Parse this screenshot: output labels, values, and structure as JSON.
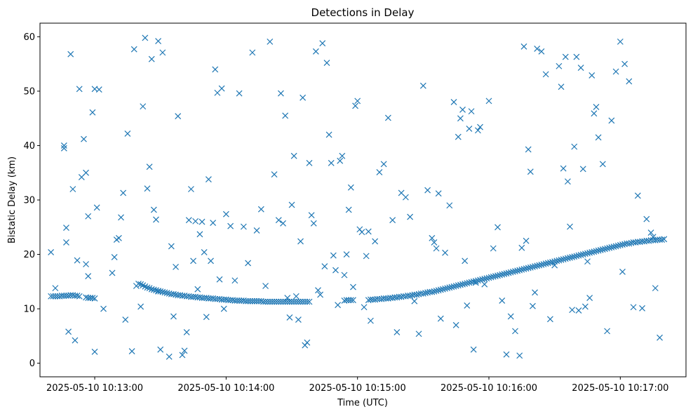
{
  "chart_data": {
    "type": "scatter",
    "title": "Detections in Delay",
    "xlabel": "Time (UTC)",
    "ylabel": "Bistatic Delay (km)",
    "x_ticks": [
      "2025-05-10 10:13:00",
      "2025-05-10 10:14:00",
      "2025-05-10 10:15:00",
      "2025-05-10 10:16:00",
      "2025-05-10 10:17:00"
    ],
    "y_ticks": [
      0,
      10,
      20,
      30,
      40,
      50,
      60
    ],
    "xlim": [
      "2025-05-10 10:12:35",
      "2025-05-10 10:17:30"
    ],
    "ylim": [
      -2.5,
      62.5
    ],
    "marker": "x",
    "color": "#1f77b4",
    "series": [
      {
        "x": [
          "10:12:40",
          "10:12:41",
          "10:12:42",
          "10:12:43",
          "10:12:44",
          "10:12:45",
          "10:12:46",
          "10:12:47",
          "10:12:48",
          "10:12:49",
          "10:12:50",
          "10:12:51",
          "10:12:52",
          "10:12:53",
          "10:12:56",
          "10:12:57",
          "10:12:58",
          "10:12:59",
          "10:13:00",
          "10:13:20",
          "10:13:21",
          "10:13:22",
          "10:13:23",
          "10:13:24",
          "10:13:25",
          "10:13:26",
          "10:13:27",
          "10:13:28",
          "10:13:29",
          "10:13:30",
          "10:13:31",
          "10:13:32",
          "10:13:33",
          "10:13:34",
          "10:13:35",
          "10:13:36",
          "10:13:37",
          "10:13:38",
          "10:13:39",
          "10:13:40",
          "10:13:41",
          "10:13:42",
          "10:13:43",
          "10:13:44",
          "10:13:45",
          "10:13:46",
          "10:13:47",
          "10:13:48",
          "10:13:49",
          "10:13:50",
          "10:13:51",
          "10:13:52",
          "10:13:53",
          "10:13:54",
          "10:13:55",
          "10:13:56",
          "10:13:57",
          "10:13:58",
          "10:13:59",
          "10:14:00",
          "10:14:01",
          "10:14:02",
          "10:14:03",
          "10:14:04",
          "10:14:05",
          "10:14:06",
          "10:14:07",
          "10:14:08",
          "10:14:09",
          "10:14:10",
          "10:14:11",
          "10:14:12",
          "10:14:13",
          "10:14:14",
          "10:14:15",
          "10:14:16",
          "10:14:17",
          "10:14:18",
          "10:14:19",
          "10:14:20",
          "10:14:21",
          "10:14:22",
          "10:14:23",
          "10:14:24",
          "10:14:25",
          "10:14:26",
          "10:14:27",
          "10:14:28",
          "10:14:29",
          "10:14:30",
          "10:14:31",
          "10:14:32",
          "10:14:33",
          "10:14:34",
          "10:14:35",
          "10:14:36",
          "10:14:37",
          "10:14:38",
          "10:14:54",
          "10:14:55",
          "10:14:56",
          "10:14:57",
          "10:14:58",
          "10:15:05",
          "10:15:06",
          "10:15:07",
          "10:15:08",
          "10:15:09",
          "10:15:10",
          "10:15:11",
          "10:15:12",
          "10:15:13",
          "10:15:14",
          "10:15:15",
          "10:15:16",
          "10:15:17",
          "10:15:18",
          "10:15:19",
          "10:15:20",
          "10:15:21",
          "10:15:22",
          "10:15:23",
          "10:15:24",
          "10:15:25",
          "10:15:26",
          "10:15:27",
          "10:15:28",
          "10:15:29",
          "10:15:30",
          "10:15:31",
          "10:15:32",
          "10:15:33",
          "10:15:34",
          "10:15:35",
          "10:15:36",
          "10:15:37",
          "10:15:38",
          "10:15:39",
          "10:15:40",
          "10:15:41",
          "10:15:42",
          "10:15:43",
          "10:15:44",
          "10:15:45",
          "10:15:46",
          "10:15:47",
          "10:15:48",
          "10:15:49",
          "10:15:50",
          "10:15:51",
          "10:15:52",
          "10:15:53",
          "10:15:54",
          "10:15:55",
          "10:15:56",
          "10:15:57",
          "10:15:58",
          "10:15:59",
          "10:16:00",
          "10:16:01",
          "10:16:02",
          "10:16:03",
          "10:16:04",
          "10:16:05",
          "10:16:06",
          "10:16:07",
          "10:16:08",
          "10:16:09",
          "10:16:10",
          "10:16:11",
          "10:16:12",
          "10:16:13",
          "10:16:14",
          "10:16:15",
          "10:16:16",
          "10:16:17",
          "10:16:18",
          "10:16:19",
          "10:16:20",
          "10:16:21",
          "10:16:22",
          "10:16:23",
          "10:16:24",
          "10:16:25",
          "10:16:26",
          "10:16:27",
          "10:16:28",
          "10:16:29",
          "10:16:30",
          "10:16:31",
          "10:16:32",
          "10:16:33",
          "10:16:34",
          "10:16:35",
          "10:16:36",
          "10:16:37",
          "10:16:38",
          "10:16:39",
          "10:16:40",
          "10:16:41",
          "10:16:42",
          "10:16:43",
          "10:16:44",
          "10:16:45",
          "10:16:46",
          "10:16:47",
          "10:16:48",
          "10:16:49",
          "10:16:50",
          "10:16:51",
          "10:16:52",
          "10:16:53",
          "10:16:54",
          "10:16:55",
          "10:16:56",
          "10:16:57",
          "10:16:58",
          "10:16:59",
          "10:17:00",
          "10:17:01",
          "10:17:02",
          "10:17:03",
          "10:17:04",
          "10:17:05",
          "10:17:06",
          "10:17:07",
          "10:17:08",
          "10:17:09",
          "10:17:10",
          "10:17:11",
          "10:17:12",
          "10:17:13",
          "10:17:14",
          "10:17:15",
          "10:17:16",
          "10:17:17",
          "10:17:18",
          "10:17:19",
          "10:17:20",
          "10:12:40",
          "10:12:42",
          "10:12:46",
          "10:12:46",
          "10:12:47",
          "10:12:47",
          "10:12:48",
          "10:12:49",
          "10:12:50",
          "10:12:51",
          "10:12:52",
          "10:12:53",
          "10:12:54",
          "10:12:55",
          "10:12:56",
          "10:12:56",
          "10:12:57",
          "10:12:57",
          "10:12:58",
          "10:12:59",
          "10:13:00",
          "10:13:00",
          "10:13:01",
          "10:13:02",
          "10:13:04",
          "10:13:08",
          "10:13:09",
          "10:13:10",
          "10:13:11",
          "10:13:12",
          "10:13:13",
          "10:13:14",
          "10:13:15",
          "10:13:17",
          "10:13:18",
          "10:13:19",
          "10:13:21",
          "10:13:22",
          "10:13:23",
          "10:13:24",
          "10:13:25",
          "10:13:26",
          "10:13:27",
          "10:13:28",
          "10:13:29",
          "10:13:29",
          "10:13:30",
          "10:13:31",
          "10:13:34",
          "10:13:35",
          "10:13:36",
          "10:13:37",
          "10:13:38",
          "10:13:40",
          "10:13:41",
          "10:13:42",
          "10:13:43",
          "10:13:44",
          "10:13:45",
          "10:13:46",
          "10:13:47",
          "10:13:48",
          "10:13:49",
          "10:13:50",
          "10:13:51",
          "10:13:52",
          "10:13:53",
          "10:13:54",
          "10:13:55",
          "10:13:56",
          "10:13:57",
          "10:13:58",
          "10:13:59",
          "10:14:00",
          "10:14:02",
          "10:14:04",
          "10:14:06",
          "10:14:08",
          "10:14:10",
          "10:14:12",
          "10:14:14",
          "10:14:16",
          "10:14:18",
          "10:14:20",
          "10:14:22",
          "10:14:24",
          "10:14:25",
          "10:14:26",
          "10:14:27",
          "10:14:28",
          "10:14:29",
          "10:14:30",
          "10:14:31",
          "10:14:32",
          "10:14:33",
          "10:14:34",
          "10:14:35",
          "10:14:36",
          "10:14:37",
          "10:14:38",
          "10:14:39",
          "10:14:40",
          "10:14:41",
          "10:14:42",
          "10:14:43",
          "10:14:44",
          "10:14:45",
          "10:14:46",
          "10:14:47",
          "10:14:48",
          "10:14:49",
          "10:14:50",
          "10:14:51",
          "10:14:52",
          "10:14:53",
          "10:14:54",
          "10:14:55",
          "10:14:56",
          "10:14:57",
          "10:14:58",
          "10:14:59",
          "10:15:00",
          "10:15:01",
          "10:15:02",
          "10:15:03",
          "10:15:04",
          "10:15:05",
          "10:15:06",
          "10:15:08",
          "10:15:10",
          "10:15:12",
          "10:15:14",
          "10:15:16",
          "10:15:18",
          "10:15:20",
          "10:15:22",
          "10:15:24",
          "10:15:26",
          "10:15:28",
          "10:15:30",
          "10:15:32",
          "10:15:34",
          "10:15:35",
          "10:15:36",
          "10:15:37",
          "10:15:38",
          "10:15:40",
          "10:15:42",
          "10:15:44",
          "10:15:45",
          "10:15:46",
          "10:15:47",
          "10:15:48",
          "10:15:49",
          "10:15:50",
          "10:15:51",
          "10:15:52",
          "10:15:53",
          "10:15:54",
          "10:15:55",
          "10:15:56",
          "10:15:58",
          "10:16:00",
          "10:16:02",
          "10:16:04",
          "10:16:06",
          "10:16:08",
          "10:16:10",
          "10:16:12",
          "10:16:14",
          "10:16:15",
          "10:16:16",
          "10:16:17",
          "10:16:18",
          "10:16:19",
          "10:16:20",
          "10:16:21",
          "10:16:22",
          "10:16:24",
          "10:16:26",
          "10:16:28",
          "10:16:30",
          "10:16:32",
          "10:16:33",
          "10:16:34",
          "10:16:35",
          "10:16:36",
          "10:16:37",
          "10:16:38",
          "10:16:39",
          "10:16:40",
          "10:16:41",
          "10:16:42",
          "10:16:43",
          "10:16:44",
          "10:16:45",
          "10:16:46",
          "10:16:47",
          "10:16:48",
          "10:16:49",
          "10:16:50",
          "10:16:52",
          "10:16:54",
          "10:16:56",
          "10:16:58",
          "10:17:00",
          "10:17:01",
          "10:17:02",
          "10:17:04",
          "10:17:06",
          "10:17:08",
          "10:17:10",
          "10:17:12",
          "10:17:14",
          "10:17:15",
          "10:17:16",
          "10:17:18"
        ],
        "y": [
          12.3,
          12.3,
          12.3,
          12.3,
          12.3,
          12.4,
          12.4,
          12.4,
          12.4,
          12.5,
          12.5,
          12.4,
          12.4,
          12.3,
          12.1,
          12.0,
          12.0,
          12.0,
          11.9,
          14.6,
          14.5,
          14.3,
          14.1,
          13.9,
          13.8,
          13.6,
          13.5,
          13.4,
          13.3,
          13.2,
          13.1,
          13.0,
          12.9,
          12.8,
          12.7,
          12.7,
          12.6,
          12.5,
          12.5,
          12.4,
          12.4,
          12.3,
          12.3,
          12.2,
          12.2,
          12.2,
          12.1,
          12.1,
          12.0,
          12.0,
          12.0,
          11.9,
          11.9,
          11.9,
          11.8,
          11.8,
          11.8,
          11.7,
          11.7,
          11.7,
          11.6,
          11.6,
          11.6,
          11.5,
          11.5,
          11.5,
          11.5,
          11.5,
          11.4,
          11.4,
          11.4,
          11.4,
          11.4,
          11.4,
          11.4,
          11.4,
          11.3,
          11.3,
          11.3,
          11.3,
          11.3,
          11.3,
          11.3,
          11.3,
          11.3,
          11.3,
          11.3,
          11.3,
          11.3,
          11.3,
          11.3,
          11.3,
          11.3,
          11.3,
          11.3,
          11.3,
          11.3,
          11.3,
          11.5,
          11.6,
          11.6,
          11.6,
          11.6,
          11.6,
          11.7,
          11.7,
          11.7,
          11.8,
          11.8,
          11.8,
          11.9,
          11.9,
          11.9,
          12.0,
          12.0,
          12.1,
          12.1,
          12.2,
          12.2,
          12.3,
          12.3,
          12.4,
          12.4,
          12.5,
          12.6,
          12.6,
          12.7,
          12.8,
          12.8,
          12.9,
          13.0,
          13.1,
          13.1,
          13.2,
          13.3,
          13.4,
          13.5,
          13.6,
          13.7,
          13.8,
          13.9,
          14.0,
          14.1,
          14.2,
          14.3,
          14.4,
          14.5,
          14.6,
          14.7,
          14.8,
          14.9,
          15.0,
          15.1,
          15.2,
          15.3,
          15.4,
          15.5,
          15.6,
          15.7,
          15.8,
          15.9,
          16.0,
          16.1,
          16.2,
          16.3,
          16.4,
          16.5,
          16.6,
          16.7,
          16.8,
          16.9,
          17.0,
          17.1,
          17.2,
          17.3,
          17.4,
          17.5,
          17.6,
          17.7,
          17.8,
          17.9,
          18.0,
          18.1,
          18.2,
          18.3,
          18.4,
          18.5,
          18.6,
          18.7,
          18.8,
          18.9,
          19.0,
          19.1,
          19.2,
          19.3,
          19.4,
          19.5,
          19.6,
          19.7,
          19.8,
          19.9,
          20.0,
          20.1,
          20.2,
          20.3,
          20.4,
          20.5,
          20.6,
          20.7,
          20.8,
          20.9,
          21.0,
          21.1,
          21.2,
          21.3,
          21.4,
          21.5,
          21.6,
          21.7,
          21.8,
          21.9,
          22.0,
          22.0,
          22.1,
          22.2,
          22.2,
          22.3,
          22.3,
          22.4,
          22.4,
          22.5,
          22.5,
          22.6,
          22.6,
          22.6,
          22.7,
          22.7,
          22.7,
          22.8,
          20.4,
          13.8,
          40.0,
          39.5,
          24.9,
          22.2,
          5.8,
          56.8,
          32.0,
          4.2,
          18.9,
          50.4,
          34.2,
          41.2,
          35.0,
          18.2,
          27.0,
          16.0,
          12.0,
          46.1,
          50.4,
          2.1,
          28.6,
          50.3,
          10.0,
          16.6,
          19.5,
          22.7,
          23.0,
          26.8,
          31.3,
          8.0,
          42.2,
          2.2,
          57.7,
          14.2,
          10.4,
          47.2,
          59.8,
          32.1,
          36.1,
          55.9,
          28.2,
          26.4,
          59.2,
          13.2,
          2.5,
          57.1,
          1.2,
          21.5,
          8.6,
          17.7,
          45.4,
          1.5,
          2.3,
          5.7,
          26.3,
          32.0,
          18.8,
          26.1,
          13.6,
          23.7,
          26.0,
          20.4,
          8.5,
          33.8,
          18.8,
          25.8,
          54.0,
          49.7,
          15.4,
          50.5,
          10.0,
          27.4,
          25.2,
          15.2,
          49.6,
          25.1,
          18.4,
          57.1,
          24.4,
          28.3,
          14.2,
          59.1,
          34.7,
          26.3,
          49.6,
          25.7,
          45.5,
          12.0,
          8.4,
          29.1,
          38.1,
          12.3,
          8.0,
          22.4,
          48.8,
          3.3,
          3.8,
          36.8,
          27.2,
          25.7,
          57.3,
          13.4,
          12.6,
          58.8,
          17.8,
          55.2,
          42.0,
          36.8,
          19.8,
          17.1,
          10.7,
          37.2,
          38.1,
          16.2,
          20.0,
          28.2,
          32.3,
          14.0,
          47.3,
          48.2,
          24.6,
          24.1,
          10.3,
          19.7,
          24.2,
          7.8,
          22.4,
          35.1,
          36.6,
          45.1,
          26.3,
          5.7,
          31.3,
          30.5,
          26.9,
          11.4,
          5.4,
          51.0,
          31.8,
          23.0,
          22.2,
          21.1,
          31.2,
          8.2,
          20.3,
          29.0,
          48.0,
          7.0,
          41.6,
          45.0,
          46.6,
          18.8,
          10.6,
          43.1,
          46.3,
          2.5,
          14.8,
          42.8,
          43.4,
          14.5,
          48.2,
          21.1,
          25.0,
          11.5,
          1.6,
          8.6,
          5.9,
          1.4,
          21.2,
          58.2,
          22.5,
          39.3,
          35.2,
          10.5,
          13.0,
          57.8,
          57.3,
          53.1,
          8.1,
          18.0,
          54.6,
          50.8,
          35.8,
          56.3,
          33.4,
          25.1,
          9.8,
          39.8,
          56.3,
          9.7,
          54.3,
          35.7,
          10.4,
          18.7,
          12.0,
          52.9,
          45.9,
          47.1,
          41.5,
          36.6,
          5.9,
          44.6,
          53.6,
          59.1,
          16.8,
          55.0,
          51.8,
          10.3,
          30.8,
          10.1,
          26.5,
          24.0,
          23.2,
          13.8,
          4.7
        ]
      }
    ]
  }
}
